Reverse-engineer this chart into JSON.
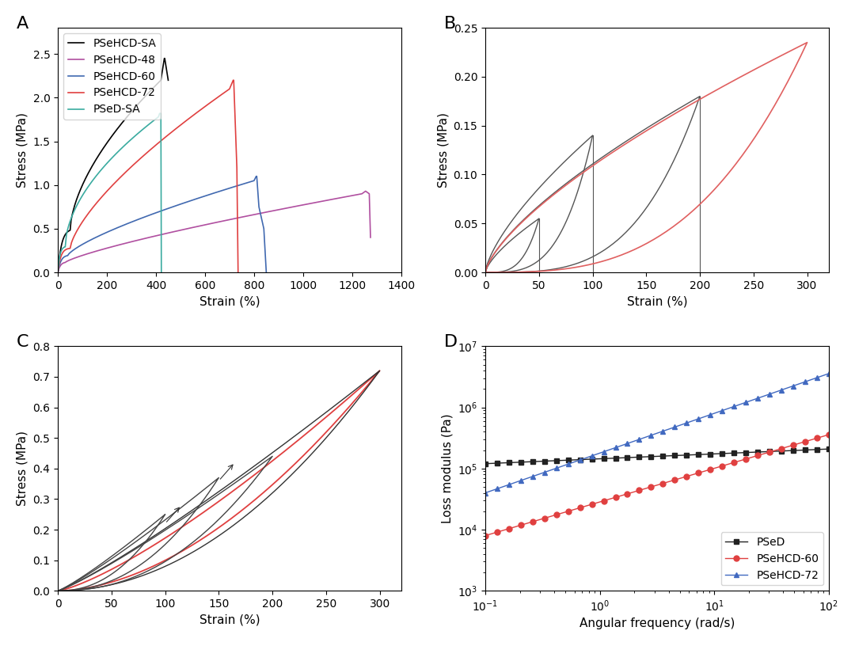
{
  "panel_labels": [
    "A",
    "B",
    "C",
    "D"
  ],
  "panel_label_fontsize": 16,
  "axis_label_fontsize": 11,
  "tick_fontsize": 10,
  "legend_fontsize": 10,
  "colors": {
    "PSeHCD_SA": "#000000",
    "PSeHCD_48": "#b04fa0",
    "PSeHCD_60": "#4169b0",
    "PSeHCD_72": "#e04040",
    "PSeD_SA": "#3aaba0",
    "gray": "#555555",
    "red_hysteresis": "#e06060",
    "PSeD_mod": "#222222",
    "PSeHCD60_mod": "#e04040",
    "PSeHCD72_mod": "#4169c0"
  }
}
